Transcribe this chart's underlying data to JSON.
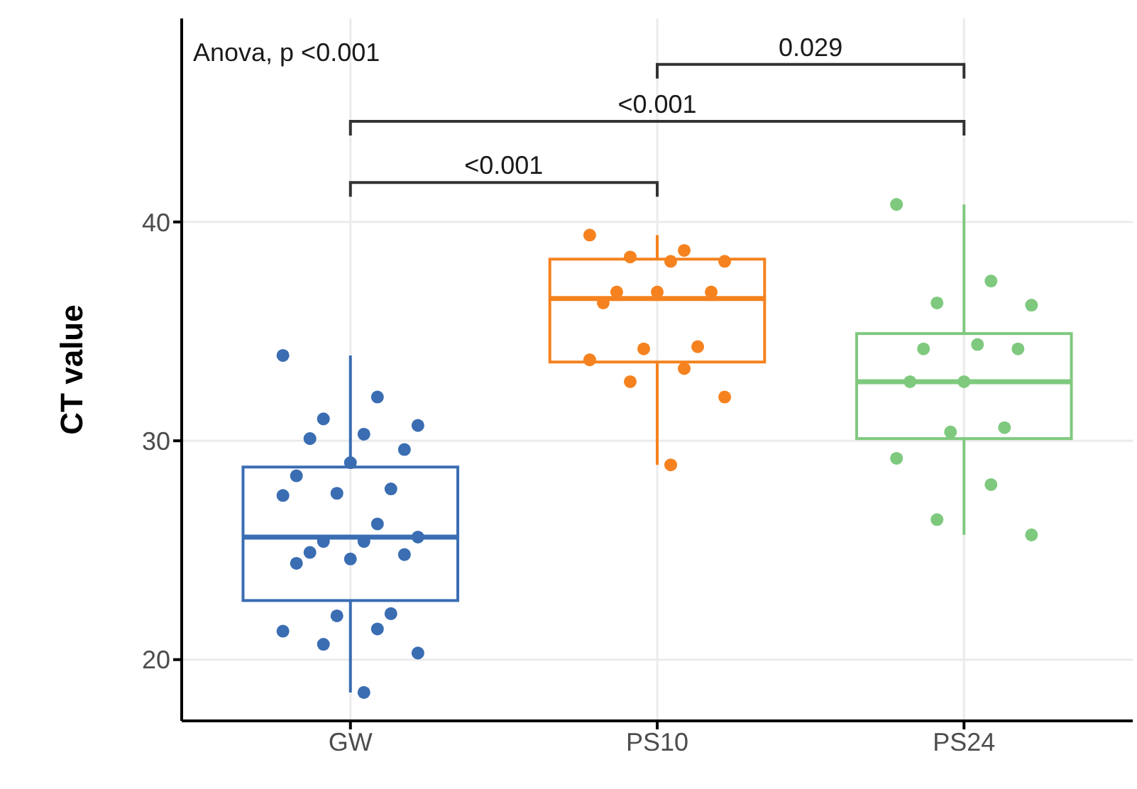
{
  "chart_data": {
    "type": "box",
    "ylabel": "CT value",
    "categories": [
      "GW",
      "PS10",
      "PS24"
    ],
    "colors": [
      "#3a6db2",
      "#f5821f",
      "#7fc97f"
    ],
    "boxes": [
      {
        "low": 18.5,
        "q1": 22.7,
        "median": 25.6,
        "q3": 28.8,
        "high": 33.9
      },
      {
        "low": 28.9,
        "q1": 33.6,
        "median": 36.5,
        "q3": 38.3,
        "high": 39.4
      },
      {
        "low": 25.7,
        "q1": 30.1,
        "median": 32.7,
        "q3": 34.9,
        "high": 40.8
      }
    ],
    "series": [
      {
        "type": "scatter",
        "color": "#3a6db2",
        "x": [
          "GW",
          "GW",
          "GW",
          "GW",
          "GW",
          "GW",
          "GW",
          "GW",
          "GW",
          "GW",
          "GW",
          "GW",
          "GW",
          "GW",
          "GW",
          "GW",
          "GW",
          "GW",
          "GW",
          "GW",
          "GW",
          "GW",
          "GW",
          "GW",
          "GW",
          "GW",
          "GW"
        ],
        "values": [
          33.9,
          32.0,
          31.0,
          30.7,
          30.3,
          30.1,
          29.6,
          29.0,
          28.4,
          27.8,
          27.6,
          27.5,
          26.2,
          25.4,
          25.6,
          25.4,
          24.9,
          24.8,
          24.6,
          24.4,
          22.1,
          22.0,
          21.3,
          21.4,
          20.7,
          20.3,
          18.5
        ]
      },
      {
        "type": "scatter",
        "color": "#f5821f",
        "x": [
          "PS10",
          "PS10",
          "PS10",
          "PS10",
          "PS10",
          "PS10",
          "PS10",
          "PS10",
          "PS10",
          "PS10",
          "PS10",
          "PS10",
          "PS10",
          "PS10",
          "PS10",
          "PS10"
        ],
        "values": [
          39.4,
          38.7,
          38.4,
          38.2,
          38.2,
          36.8,
          36.8,
          36.8,
          36.3,
          34.3,
          34.2,
          33.7,
          33.3,
          32.7,
          32.0,
          28.9
        ]
      },
      {
        "type": "scatter",
        "color": "#7fc97f",
        "x": [
          "PS24",
          "PS24",
          "PS24",
          "PS24",
          "PS24",
          "PS24",
          "PS24",
          "PS24",
          "PS24",
          "PS24",
          "PS24",
          "PS24",
          "PS24",
          "PS24",
          "PS24"
        ],
        "values": [
          40.8,
          37.3,
          36.3,
          36.2,
          34.4,
          34.2,
          34.2,
          32.7,
          32.7,
          30.6,
          30.4,
          29.2,
          28.0,
          26.4,
          25.7
        ]
      }
    ],
    "ylim": [
      17.2,
      49.3
    ],
    "yticks": [
      20,
      30,
      40
    ],
    "grid": true,
    "marker": "circle",
    "annotations": [
      "Anova, p <0.001",
      "0.029",
      "<0.001",
      "<0.001"
    ]
  }
}
